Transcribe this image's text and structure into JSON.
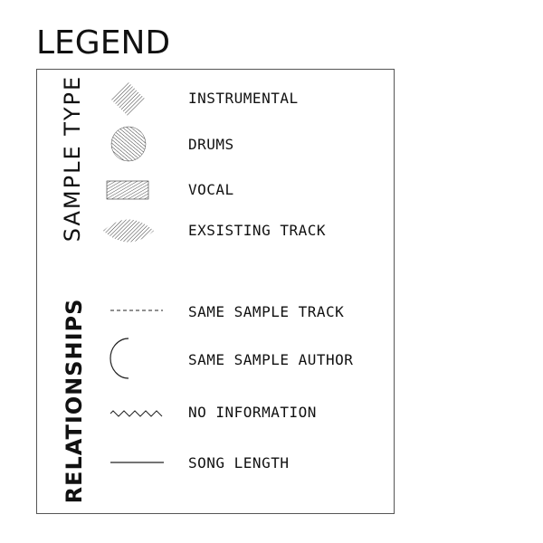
{
  "title": "LEGEND",
  "sample_type": {
    "label": "SAMPLE TYPE",
    "items": [
      {
        "label": "INSTRUMENTAL",
        "icon": "hatched-diamond-icon"
      },
      {
        "label": "DRUMS",
        "icon": "hatched-circle-icon"
      },
      {
        "label": "VOCAL",
        "icon": "hatched-rectangle-icon"
      },
      {
        "label": "EXSISTING TRACK",
        "icon": "hatched-lens-icon"
      }
    ]
  },
  "relationships": {
    "label": "RELATIONSHIPS",
    "items": [
      {
        "label": "SAME SAMPLE TRACK",
        "icon": "dashed-line-icon"
      },
      {
        "label": "SAME SAMPLE AUTHOR",
        "icon": "arc-icon"
      },
      {
        "label": "NO INFORMATION",
        "icon": "wavy-line-icon"
      },
      {
        "label": "SONG LENGTH",
        "icon": "solid-line-icon"
      }
    ]
  },
  "colors": {
    "ink": "#111111",
    "frame": "#555555"
  }
}
